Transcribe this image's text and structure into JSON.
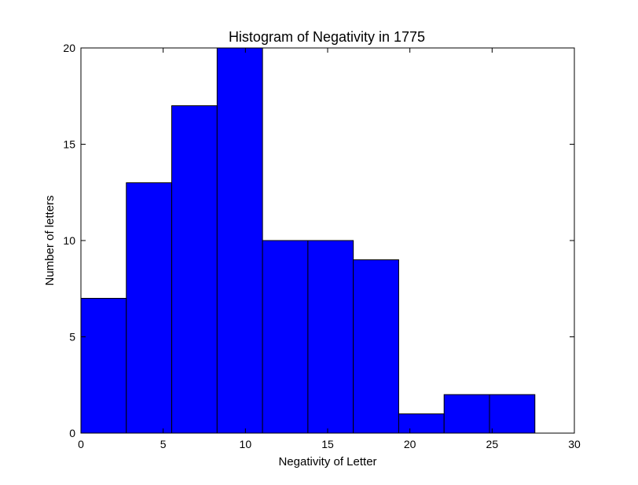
{
  "chart_data": {
    "type": "bar",
    "title": "Histogram of Negativity in 1775",
    "xlabel": "Negativity of Letter",
    "ylabel": "Number of letters",
    "xlim": [
      0,
      30
    ],
    "ylim": [
      0,
      20
    ],
    "grid": false,
    "bar_color": "#0000ff",
    "edge_color": "#000000",
    "bins": [
      {
        "x_start": 0.0,
        "x_end": 2.76,
        "count": 7
      },
      {
        "x_start": 2.76,
        "x_end": 5.52,
        "count": 13
      },
      {
        "x_start": 5.52,
        "x_end": 8.28,
        "count": 17
      },
      {
        "x_start": 8.28,
        "x_end": 11.04,
        "count": 20
      },
      {
        "x_start": 11.04,
        "x_end": 13.8,
        "count": 10
      },
      {
        "x_start": 13.8,
        "x_end": 16.56,
        "count": 10
      },
      {
        "x_start": 16.56,
        "x_end": 19.32,
        "count": 9
      },
      {
        "x_start": 19.32,
        "x_end": 22.08,
        "count": 1
      },
      {
        "x_start": 22.08,
        "x_end": 24.84,
        "count": 2
      },
      {
        "x_start": 24.84,
        "x_end": 27.6,
        "count": 2
      }
    ],
    "x_ticks": [
      {
        "value": 0,
        "label": "0"
      },
      {
        "value": 5,
        "label": "5"
      },
      {
        "value": 10,
        "label": "10"
      },
      {
        "value": 15,
        "label": "15"
      },
      {
        "value": 20,
        "label": "20"
      },
      {
        "value": 25,
        "label": "25"
      },
      {
        "value": 30,
        "label": "30"
      }
    ],
    "y_ticks": [
      {
        "value": 0,
        "label": "0"
      },
      {
        "value": 5,
        "label": "5"
      },
      {
        "value": 10,
        "label": "10"
      },
      {
        "value": 15,
        "label": "15"
      },
      {
        "value": 20,
        "label": "20"
      }
    ]
  }
}
